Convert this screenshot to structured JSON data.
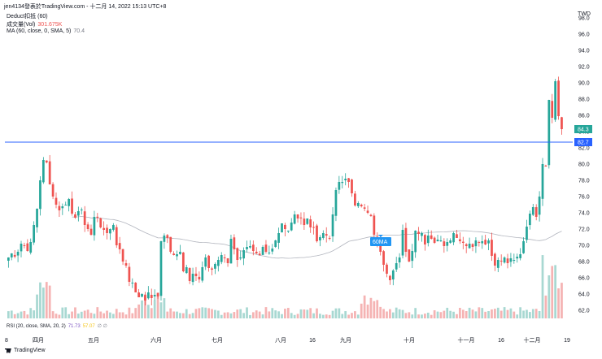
{
  "header": {
    "text": "jen4134發表於TradingView.com - 十二月 14, 2022 15:13 UTC+8"
  },
  "legend": {
    "deduct": "Deduct扣抵 (60)",
    "volume_label": "成交量(Vol)",
    "volume_value": "301.675K",
    "ma_label": "MA (60, close, 0, SMA, 5)",
    "ma_value": "70.4"
  },
  "currency": "TWD",
  "price_axis": [
    "98.0",
    "96.0",
    "94.0",
    "92.0",
    "90.0",
    "88.0",
    "86.0",
    "84.0",
    "82.0",
    "80.0",
    "78.0",
    "76.0",
    "74.0",
    "72.0",
    "70.0",
    "68.0",
    "66.0",
    "64.0",
    "62.0"
  ],
  "price_tags": {
    "last": "84.3",
    "line": "82.7"
  },
  "annotation": "60MA",
  "x_axis": [
    "8",
    "四月",
    "五月",
    "六月",
    "七月",
    "八月",
    "16",
    "九月",
    "十月",
    "十一月",
    "16",
    "十二月",
    "19"
  ],
  "rsi": {
    "label": "RSI (20, close, SMA, 20, 2)",
    "v1": "71.73",
    "v2": "57.07",
    "v3": "∅ ∅"
  },
  "brand": "TradingView",
  "colors": {
    "up": "#26a69a",
    "down": "#ef5350",
    "line": "#2962ff",
    "ma": "#b2b5be",
    "tag_last": "#26a69a",
    "tag_line": "#2962ff"
  },
  "chart_data": {
    "type": "candlestick",
    "ylim": [
      61,
      99
    ],
    "hline": 82.7,
    "close_series": [
      68.5,
      69,
      68.6,
      69.2,
      70.2,
      70,
      69.3,
      70.4,
      72.5,
      74.5,
      78,
      80.5,
      80.2,
      77.5,
      76,
      75,
      74.3,
      74.8,
      75,
      75.7,
      73.9,
      73.4,
      74.2,
      74.4,
      72.5,
      72,
      71.3,
      73.5,
      73.4,
      72.2,
      71.9,
      71.5,
      72,
      72.5,
      70,
      69.5,
      68,
      67.5,
      65.5,
      65.4,
      64.2,
      63.6,
      64,
      63.2,
      64.2,
      63.5,
      63.9,
      63.7,
      70.5,
      71.2,
      70.9,
      69.2,
      68.8,
      68.9,
      69.2,
      66.8,
      67.3,
      65.6,
      66.5,
      66.2,
      65.8,
      67.3,
      68.5,
      67.2,
      67,
      67.7,
      68.2,
      68.8,
      68.5,
      67.8,
      70.8,
      69.5,
      68.2,
      68.5,
      69.4,
      69.8,
      69.9,
      69.3,
      69,
      68.8,
      69.8,
      69.2,
      69.1,
      69.6,
      70.6,
      71.5,
      72.7,
      72,
      71.8,
      72.8,
      73.8,
      73.3,
      73.4,
      72.5,
      73.3,
      72.2,
      72.2,
      70.5,
      71,
      71.5,
      71.2,
      70.9,
      73.8,
      76.8,
      77.8,
      77.8,
      78.2,
      77.8,
      76.4,
      74.9,
      75.2,
      74.8,
      74.5,
      74,
      73.6,
      71.3,
      70.5,
      69.2,
      67.6,
      66.5,
      65.7,
      66.9,
      67.8,
      68.5,
      71.9,
      69.2,
      68,
      69.3,
      71.8,
      71.4,
      71.5,
      70.1,
      71.2,
      70.8,
      70.3,
      70.7,
      70.6,
      69.9,
      70.4,
      70.6,
      71.5,
      70.9,
      70.5,
      70.3,
      69.9,
      70.2,
      69.8,
      70.6,
      70.3,
      70.5,
      70.1,
      70.6,
      68.7,
      67.5,
      68.2,
      68,
      68.5,
      67.8,
      68.4,
      68.2,
      68.6,
      68.9,
      70.5,
      72.3,
      73.9,
      74.7,
      73.5,
      76,
      80,
      79.7,
      87.9,
      85.7,
      90.2,
      85.9,
      84.3
    ],
    "volume_note": "daily volume histogram, up bars teal / down bars salmon",
    "indicator_rsi": {
      "values": [
        71.73,
        57.07
      ]
    }
  }
}
